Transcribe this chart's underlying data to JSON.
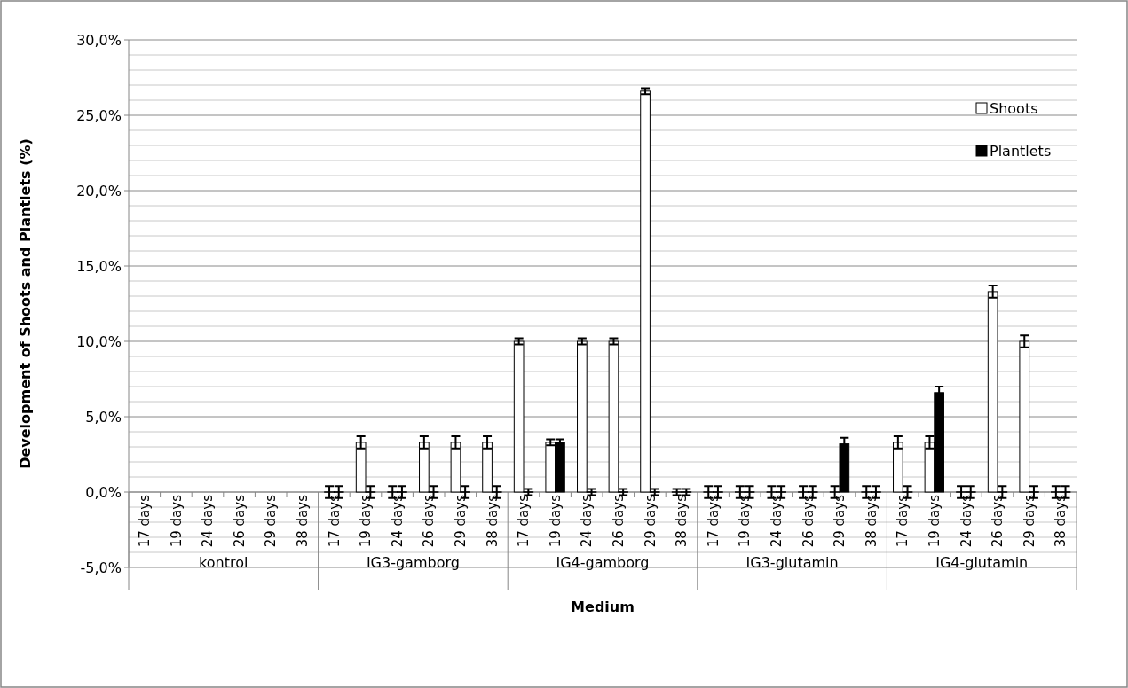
{
  "chart_data": {
    "type": "bar",
    "xlabel": "Medium",
    "ylabel": "Development of Shoots and Plantlets (%)",
    "categories": [
      "17 days",
      "19 days",
      "24 days",
      "26 days",
      "29 days",
      "38 days",
      "17 days",
      "19 days",
      "24 days",
      "26 days",
      "29 days",
      "38 days",
      "17 days",
      "19 days",
      "24 days",
      "26 days",
      "29 days",
      "38 days",
      "17 days",
      "19 days",
      "24 days",
      "26 days",
      "29 days",
      "38 days",
      "17 days",
      "19 days",
      "24 days",
      "26 days",
      "29 days",
      "38 days"
    ],
    "annotations": [
      "kontrol",
      "IG3-gamborg",
      "IG4-gamborg",
      "IG3-glutamin",
      "IG4-glutamin"
    ],
    "series": [
      {
        "name": "Shoots",
        "color": "#ffffff",
        "values": [
          null,
          null,
          null,
          null,
          null,
          null,
          0,
          3.3,
          0,
          3.3,
          3.3,
          3.3,
          10,
          3.3,
          10,
          10,
          26.6,
          0,
          0,
          0,
          0,
          0,
          0,
          0,
          3.3,
          3.3,
          0,
          13.3,
          10,
          0
        ],
        "errors": [
          null,
          null,
          null,
          null,
          null,
          null,
          0.4,
          0.4,
          0.4,
          0.4,
          0.4,
          0.4,
          0.2,
          0.2,
          0.2,
          0.2,
          0.2,
          0.2,
          0.4,
          0.4,
          0.4,
          0.4,
          0.4,
          0.4,
          0.4,
          0.4,
          0.4,
          0.4,
          0.4,
          0.4
        ]
      },
      {
        "name": "Plantlets",
        "color": "#000000",
        "values": [
          null,
          null,
          null,
          null,
          null,
          null,
          0,
          0,
          0,
          0,
          0,
          0,
          0,
          3.3,
          0,
          0,
          0,
          0,
          0,
          0,
          0,
          0,
          3.2,
          0,
          0,
          6.6,
          0,
          0,
          0,
          0
        ],
        "errors": [
          null,
          null,
          null,
          null,
          null,
          null,
          0.4,
          0.4,
          0.4,
          0.4,
          0.4,
          0.4,
          0.2,
          0.2,
          0.2,
          0.2,
          0.2,
          0.2,
          0.4,
          0.4,
          0.4,
          0.4,
          0.4,
          0.4,
          0.4,
          0.4,
          0.4,
          0.4,
          0.4,
          0.4
        ]
      }
    ],
    "ylim": [
      -5,
      30
    ],
    "yticks": [
      {
        "value": -5,
        "label": "-5,0%"
      },
      {
        "value": -4,
        "label": null
      },
      {
        "value": -3,
        "label": null
      },
      {
        "value": -2,
        "label": null
      },
      {
        "value": -1,
        "label": null
      },
      {
        "value": 0,
        "label": "0,0%"
      },
      {
        "value": 1,
        "label": null
      },
      {
        "value": 2,
        "label": null
      },
      {
        "value": 3,
        "label": null
      },
      {
        "value": 4,
        "label": null
      },
      {
        "value": 5,
        "label": "5,0%"
      },
      {
        "value": 6,
        "label": null
      },
      {
        "value": 7,
        "label": null
      },
      {
        "value": 8,
        "label": null
      },
      {
        "value": 9,
        "label": null
      },
      {
        "value": 10,
        "label": "10,0%"
      },
      {
        "value": 11,
        "label": null
      },
      {
        "value": 12,
        "label": null
      },
      {
        "value": 13,
        "label": null
      },
      {
        "value": 14,
        "label": null
      },
      {
        "value": 15,
        "label": "15,0%"
      },
      {
        "value": 16,
        "label": null
      },
      {
        "value": 17,
        "label": null
      },
      {
        "value": 18,
        "label": null
      },
      {
        "value": 19,
        "label": null
      },
      {
        "value": 20,
        "label": "20,0%"
      },
      {
        "value": 21,
        "label": null
      },
      {
        "value": 22,
        "label": null
      },
      {
        "value": 23,
        "label": null
      },
      {
        "value": 24,
        "label": null
      },
      {
        "value": 25,
        "label": "25,0%"
      },
      {
        "value": 26,
        "label": null
      },
      {
        "value": 27,
        "label": null
      },
      {
        "value": 28,
        "label": null
      },
      {
        "value": 29,
        "label": null
      },
      {
        "value": 30,
        "label": "30,0%"
      }
    ],
    "grid": true,
    "legend": "right"
  }
}
